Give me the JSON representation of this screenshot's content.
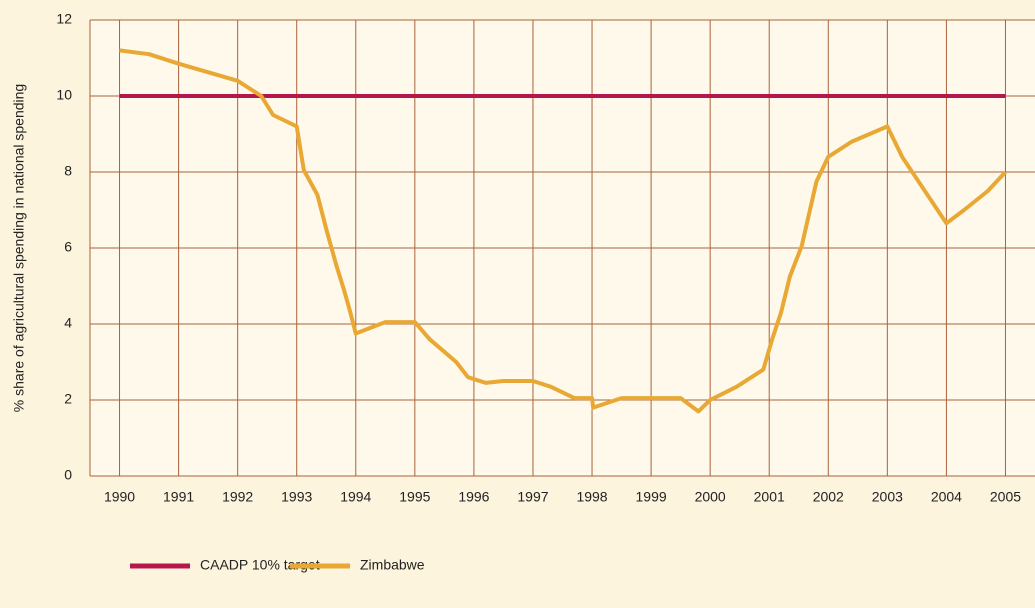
{
  "chart_data": {
    "type": "line",
    "y_label": "% share of agricultural spending in national spending",
    "xlim": [
      1989.5,
      2005.5
    ],
    "xticks": [
      1990,
      1991,
      1992,
      1993,
      1994,
      1995,
      1996,
      1997,
      1998,
      1999,
      2000,
      2001,
      2002,
      2003,
      2004,
      2005
    ],
    "ylim": [
      0,
      12
    ],
    "yticks": [
      0,
      2,
      4,
      6,
      8,
      10,
      12
    ],
    "grid": true,
    "series": [
      {
        "name": "CAADP 10% target",
        "color": "#b5174d",
        "x": [
          1990,
          2005
        ],
        "values": [
          10,
          10
        ]
      },
      {
        "name": "Zimbabwe",
        "color": "#e8a833",
        "x": [
          1990,
          1990.5,
          1991,
          1992,
          1992.4,
          1992.6,
          1993,
          1993.12,
          1993.35,
          1993.5,
          1993.67,
          1993.8,
          1993.9,
          1994,
          1994.5,
          1995,
          1995.25,
          1995.7,
          1995.9,
          1996.2,
          1996.5,
          1997,
          1997.3,
          1997.7,
          1998,
          1998.02,
          1998.5,
          1999,
          1999.5,
          1999.8,
          2000,
          2000.45,
          2000.9,
          2001.05,
          2001.2,
          2001.35,
          2001.55,
          2001.8,
          2002,
          2002.4,
          2003,
          2003.25,
          2004,
          2004.3,
          2004.7,
          2005
        ],
        "values": [
          11.2,
          11.1,
          10.85,
          10.4,
          10.0,
          9.5,
          9.2,
          8.05,
          7.4,
          6.5,
          5.55,
          4.9,
          4.35,
          3.75,
          4.05,
          4.05,
          3.6,
          3.0,
          2.6,
          2.45,
          2.5,
          2.5,
          2.35,
          2.05,
          2.05,
          1.8,
          2.05,
          2.05,
          2.05,
          1.7,
          2.0,
          2.35,
          2.8,
          3.6,
          4.3,
          5.25,
          6.05,
          7.75,
          8.4,
          8.8,
          9.2,
          8.4,
          6.65,
          7.0,
          7.5,
          8.0
        ]
      }
    ]
  }
}
